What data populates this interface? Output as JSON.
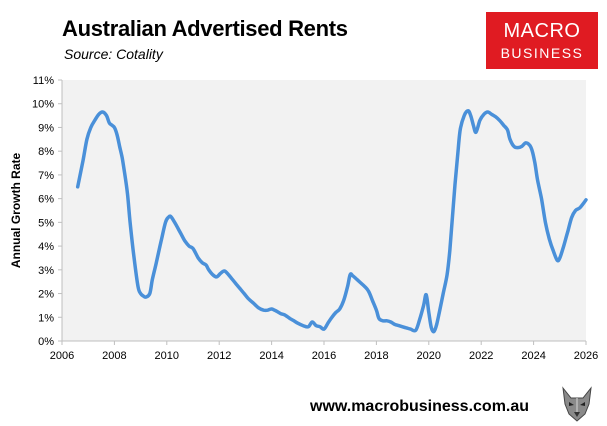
{
  "header": {
    "title": "Australian Advertised Rents",
    "subtitle": "Source: Cotality"
  },
  "logo": {
    "line1": "MACRO",
    "line2": "BUSINESS",
    "color": "#e01b22"
  },
  "footer": {
    "url": "www.macrobusiness.com.au",
    "mascot_icon": "wolf-icon"
  },
  "chart_data": {
    "type": "line",
    "title": "Australian Advertised Rents",
    "ylabel": "Annual Growth Rate",
    "xlabel": "",
    "xlim": [
      2006,
      2026
    ],
    "ylim": [
      0,
      11
    ],
    "x_ticks": [
      "2006",
      "2008",
      "2010",
      "2012",
      "2014",
      "2016",
      "2018",
      "2020",
      "2022",
      "2024",
      "2026"
    ],
    "y_ticks": [
      "0%",
      "1%",
      "2%",
      "3%",
      "4%",
      "5%",
      "6%",
      "7%",
      "8%",
      "9%",
      "10%",
      "11%"
    ],
    "grid": false,
    "plot_background": "#f2f2f2",
    "series": [
      {
        "color": "#4a90d9",
        "x": [
          2006.6,
          2006.8,
          2006.95,
          2007.1,
          2007.25,
          2007.4,
          2007.55,
          2007.7,
          2007.8,
          2007.9,
          2008.0,
          2008.1,
          2008.2,
          2008.3,
          2008.4,
          2008.5,
          2008.6,
          2008.75,
          2008.9,
          2009.0,
          2009.1,
          2009.2,
          2009.35,
          2009.45,
          2009.6,
          2009.8,
          2009.95,
          2010.05,
          2010.15,
          2010.3,
          2010.45,
          2010.55,
          2010.7,
          2010.85,
          2011.0,
          2011.2,
          2011.35,
          2011.5,
          2011.6,
          2011.75,
          2011.9,
          2012.05,
          2012.2,
          2012.35,
          2012.5,
          2012.65,
          2012.8,
          2012.95,
          2013.1,
          2013.3,
          2013.5,
          2013.7,
          2013.85,
          2014.0,
          2014.2,
          2014.35,
          2014.5,
          2014.7,
          2014.85,
          2015.0,
          2015.2,
          2015.4,
          2015.55,
          2015.7,
          2015.85,
          2016.0,
          2016.15,
          2016.3,
          2016.45,
          2016.6,
          2016.75,
          2016.9,
          2017.0,
          2017.1,
          2017.25,
          2017.4,
          2017.55,
          2017.7,
          2017.85,
          2018.0,
          2018.1,
          2018.25,
          2018.4,
          2018.55,
          2018.7,
          2018.85,
          2019.0,
          2019.15,
          2019.3,
          2019.5,
          2019.65,
          2019.8,
          2019.9,
          2020.0,
          2020.1,
          2020.2,
          2020.3,
          2020.4,
          2020.55,
          2020.7,
          2020.8,
          2020.9,
          2021.0,
          2021.1,
          2021.2,
          2021.35,
          2021.5,
          2021.6,
          2021.7,
          2021.8,
          2021.95,
          2022.1,
          2022.25,
          2022.4,
          2022.55,
          2022.7,
          2022.85,
          2023.0,
          2023.1,
          2023.25,
          2023.4,
          2023.55,
          2023.7,
          2023.85,
          2023.95,
          2024.05,
          2024.15,
          2024.3,
          2024.45,
          2024.6,
          2024.75,
          2024.9,
          2025.0,
          2025.15,
          2025.3,
          2025.45,
          2025.6,
          2025.75,
          2025.9,
          2026.0
        ],
        "values": [
          6.5,
          7.6,
          8.5,
          9.0,
          9.3,
          9.55,
          9.65,
          9.5,
          9.2,
          9.1,
          9.0,
          8.7,
          8.2,
          7.7,
          7.0,
          6.2,
          5.0,
          3.5,
          2.3,
          2.0,
          1.9,
          1.85,
          2.0,
          2.6,
          3.3,
          4.3,
          5.0,
          5.2,
          5.25,
          5.0,
          4.7,
          4.5,
          4.2,
          4.0,
          3.9,
          3.5,
          3.3,
          3.2,
          3.0,
          2.8,
          2.7,
          2.85,
          2.95,
          2.8,
          2.6,
          2.4,
          2.2,
          2.0,
          1.8,
          1.6,
          1.4,
          1.3,
          1.3,
          1.35,
          1.25,
          1.15,
          1.1,
          0.95,
          0.85,
          0.75,
          0.65,
          0.6,
          0.8,
          0.65,
          0.6,
          0.5,
          0.75,
          1.0,
          1.2,
          1.35,
          1.7,
          2.3,
          2.8,
          2.75,
          2.6,
          2.45,
          2.3,
          2.1,
          1.7,
          1.3,
          0.95,
          0.85,
          0.85,
          0.8,
          0.7,
          0.65,
          0.6,
          0.55,
          0.5,
          0.45,
          0.9,
          1.5,
          1.95,
          1.2,
          0.55,
          0.4,
          0.7,
          1.2,
          2.0,
          2.8,
          3.8,
          5.2,
          6.6,
          7.8,
          8.9,
          9.5,
          9.7,
          9.5,
          9.1,
          8.8,
          9.3,
          9.55,
          9.65,
          9.55,
          9.45,
          9.3,
          9.1,
          8.9,
          8.5,
          8.2,
          8.15,
          8.2,
          8.35,
          8.25,
          8.0,
          7.5,
          6.8,
          6.0,
          5.0,
          4.3,
          3.8,
          3.4,
          3.5,
          4.0,
          4.6,
          5.2,
          5.5,
          5.6,
          5.8,
          5.95
        ]
      }
    ]
  }
}
